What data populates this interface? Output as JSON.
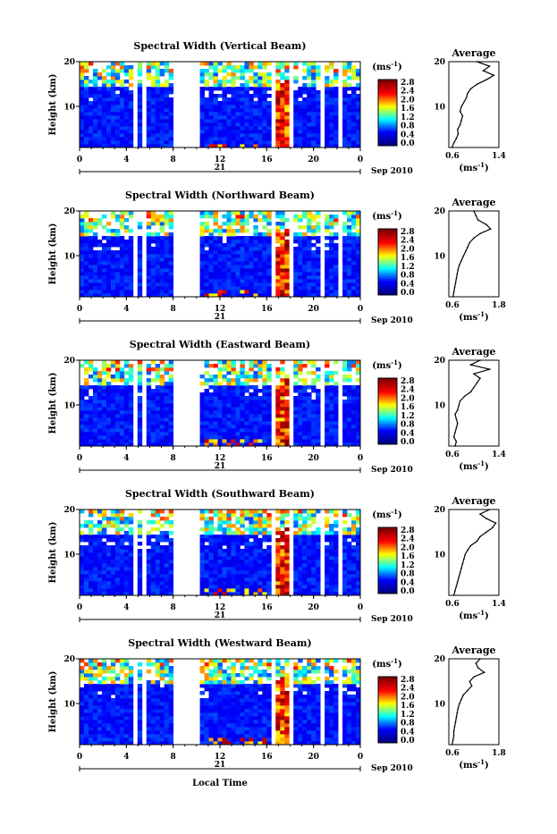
{
  "figure": {
    "xlabel": "Local Time",
    "day_label": "21",
    "date_label": "Sep 2010"
  },
  "chart_data": [
    {
      "type": "heatmap",
      "title": "Spectral Width (Vertical Beam)",
      "ylabel": "Height (km)",
      "xlim": [
        0,
        24
      ],
      "ylim": [
        1,
        20
      ],
      "x_ticks": [
        "0",
        "4",
        "8",
        "12",
        "16",
        "20",
        "0"
      ],
      "y_ticks": [
        "10",
        "20"
      ],
      "colorbar": {
        "unit": "(ms",
        "unit_exp": "-1",
        "unit_close": ")",
        "labels": [
          "2.8",
          "2.4",
          "2.0",
          "1.6",
          "1.2",
          "0.8",
          "0.4",
          "0.0"
        ]
      },
      "data_gaps_hours": [
        [
          4.5,
          4.9
        ],
        [
          5.5,
          5.8
        ],
        [
          8.0,
          10.2
        ],
        [
          16.2,
          16.7
        ],
        [
          18.0,
          18.4
        ],
        [
          20.5,
          20.9
        ],
        [
          22.0,
          22.3
        ]
      ],
      "profile": {
        "title": "Average",
        "xlabel": "(ms",
        "xlabel_exp": "-1",
        "xlabel_close": ")",
        "xlim": [
          0.6,
          1.4
        ],
        "x_ticks": [
          "0.6",
          "1.4"
        ],
        "y_ticks": [
          "10",
          "20"
        ],
        "height_km": [
          1,
          2,
          3,
          4,
          5,
          6,
          7,
          8,
          9,
          10,
          11,
          12,
          13,
          14,
          15,
          16,
          17,
          18,
          19,
          20
        ],
        "width_ms": [
          0.65,
          0.68,
          0.72,
          0.75,
          0.74,
          0.78,
          0.8,
          0.82,
          0.78,
          0.8,
          0.84,
          0.88,
          0.9,
          0.95,
          1.05,
          1.2,
          1.32,
          1.15,
          1.25,
          1.05
        ]
      }
    },
    {
      "type": "heatmap",
      "title": "Spectral Width (Northward Beam)",
      "ylabel": "Height (km)",
      "xlim": [
        0,
        24
      ],
      "ylim": [
        1,
        20
      ],
      "x_ticks": [
        "0",
        "4",
        "8",
        "12",
        "16",
        "20",
        "0"
      ],
      "y_ticks": [
        "10",
        "20"
      ],
      "colorbar": {
        "unit": "(ms",
        "unit_exp": "-1",
        "unit_close": ")",
        "labels": [
          "2.8",
          "2.4",
          "2.0",
          "1.6",
          "1.2",
          "0.8",
          "0.4",
          "0.0"
        ]
      },
      "data_gaps_hours": [
        [
          4.5,
          4.9
        ],
        [
          5.5,
          5.8
        ],
        [
          8.0,
          10.2
        ],
        [
          16.2,
          16.7
        ],
        [
          18.0,
          18.4
        ],
        [
          20.5,
          20.9
        ],
        [
          22.0,
          22.3
        ]
      ],
      "profile": {
        "title": "Average",
        "xlabel": "(ms",
        "xlabel_exp": "-1",
        "xlabel_close": ")",
        "xlim": [
          0.6,
          1.8
        ],
        "x_ticks": [
          "0.6",
          "1.8"
        ],
        "y_ticks": [
          "10",
          "20"
        ],
        "height_km": [
          1,
          2,
          3,
          4,
          5,
          6,
          7,
          8,
          9,
          10,
          11,
          12,
          13,
          14,
          15,
          16,
          17,
          18,
          19,
          20
        ],
        "width_ms": [
          0.7,
          0.72,
          0.74,
          0.76,
          0.78,
          0.8,
          0.82,
          0.85,
          0.9,
          0.95,
          1.0,
          1.05,
          1.1,
          1.2,
          1.35,
          1.6,
          1.5,
          1.3,
          1.25,
          1.2
        ]
      }
    },
    {
      "type": "heatmap",
      "title": "Spectral Width (Eastward Beam)",
      "ylabel": "Height (km)",
      "xlim": [
        0,
        24
      ],
      "ylim": [
        1,
        20
      ],
      "x_ticks": [
        "0",
        "4",
        "8",
        "12",
        "16",
        "20",
        "0"
      ],
      "y_ticks": [
        "10",
        "20"
      ],
      "colorbar": {
        "unit": "(ms",
        "unit_exp": "-1",
        "unit_close": ")",
        "labels": [
          "2.8",
          "2.4",
          "2.0",
          "1.6",
          "1.2",
          "0.8",
          "0.4",
          "0.0"
        ]
      },
      "data_gaps_hours": [
        [
          4.5,
          4.9
        ],
        [
          5.5,
          5.8
        ],
        [
          8.0,
          10.2
        ],
        [
          16.2,
          16.7
        ],
        [
          18.0,
          18.4
        ],
        [
          20.5,
          20.9
        ],
        [
          22.0,
          22.3
        ]
      ],
      "profile": {
        "title": "Average",
        "xlabel": "(ms",
        "xlabel_exp": "-1",
        "xlabel_close": ")",
        "xlim": [
          0.6,
          1.4
        ],
        "x_ticks": [
          "0.6",
          "1.4"
        ],
        "y_ticks": [
          "10",
          "20"
        ],
        "height_km": [
          1,
          2,
          3,
          4,
          5,
          6,
          7,
          8,
          9,
          10,
          11,
          12,
          13,
          14,
          15,
          16,
          17,
          18,
          19,
          20
        ],
        "width_ms": [
          0.7,
          0.72,
          0.68,
          0.7,
          0.72,
          0.74,
          0.72,
          0.7,
          0.74,
          0.76,
          0.78,
          0.85,
          0.95,
          1.0,
          1.05,
          1.1,
          1.0,
          1.25,
          0.95,
          1.1
        ]
      }
    },
    {
      "type": "heatmap",
      "title": "Spectral Width (Southward Beam)",
      "ylabel": "Height (km)",
      "xlim": [
        0,
        24
      ],
      "ylim": [
        1,
        20
      ],
      "x_ticks": [
        "0",
        "4",
        "8",
        "12",
        "16",
        "20",
        "0"
      ],
      "y_ticks": [
        "10",
        "20"
      ],
      "colorbar": {
        "unit": "(ms",
        "unit_exp": "-1",
        "unit_close": ")",
        "labels": [
          "2.8",
          "2.4",
          "2.0",
          "1.6",
          "1.2",
          "0.8",
          "0.4",
          "0.0"
        ]
      },
      "data_gaps_hours": [
        [
          4.5,
          4.9
        ],
        [
          5.5,
          5.8
        ],
        [
          8.0,
          10.2
        ],
        [
          16.2,
          16.7
        ],
        [
          18.0,
          18.4
        ],
        [
          20.5,
          20.9
        ],
        [
          22.0,
          22.3
        ]
      ],
      "profile": {
        "title": "Average",
        "xlabel": "(ms",
        "xlabel_exp": "-1",
        "xlabel_close": ")",
        "xlim": [
          0.6,
          1.4
        ],
        "x_ticks": [
          "0.6",
          "1.4"
        ],
        "y_ticks": [
          "10",
          "20"
        ],
        "height_km": [
          1,
          2,
          3,
          4,
          5,
          6,
          7,
          8,
          9,
          10,
          11,
          12,
          13,
          14,
          15,
          16,
          17,
          18,
          19,
          20
        ],
        "width_ms": [
          0.68,
          0.7,
          0.72,
          0.74,
          0.76,
          0.78,
          0.8,
          0.82,
          0.84,
          0.86,
          0.9,
          0.95,
          1.05,
          1.1,
          1.2,
          1.3,
          1.35,
          1.2,
          1.1,
          1.25
        ]
      }
    },
    {
      "type": "heatmap",
      "title": "Spectral Width (Westward Beam)",
      "ylabel": "Height (km)",
      "xlim": [
        0,
        24
      ],
      "ylim": [
        1,
        20
      ],
      "x_ticks": [
        "0",
        "4",
        "8",
        "12",
        "16",
        "20",
        "0"
      ],
      "y_ticks": [
        "10",
        "20"
      ],
      "colorbar": {
        "unit": "(ms",
        "unit_exp": "-1",
        "unit_close": ")",
        "labels": [
          "2.8",
          "2.4",
          "2.0",
          "1.6",
          "1.2",
          "0.8",
          "0.4",
          "0.0"
        ]
      },
      "data_gaps_hours": [
        [
          4.5,
          4.9
        ],
        [
          5.5,
          5.8
        ],
        [
          8.0,
          10.2
        ],
        [
          16.2,
          16.7
        ],
        [
          18.0,
          18.4
        ],
        [
          20.5,
          20.9
        ],
        [
          22.0,
          22.3
        ]
      ],
      "profile": {
        "title": "Average",
        "xlabel": "(ms",
        "xlabel_exp": "-1",
        "xlabel_close": ")",
        "xlim": [
          0.6,
          1.8
        ],
        "x_ticks": [
          "0.6",
          "1.8"
        ],
        "y_ticks": [
          "10",
          "20"
        ],
        "height_km": [
          1,
          2,
          3,
          4,
          5,
          6,
          7,
          8,
          9,
          10,
          11,
          12,
          13,
          14,
          15,
          16,
          17,
          18,
          19,
          20
        ],
        "width_ms": [
          0.68,
          0.7,
          0.72,
          0.72,
          0.74,
          0.76,
          0.78,
          0.8,
          0.82,
          0.85,
          0.9,
          0.95,
          1.05,
          1.15,
          1.1,
          1.2,
          1.45,
          1.3,
          1.25,
          1.35
        ]
      }
    }
  ]
}
